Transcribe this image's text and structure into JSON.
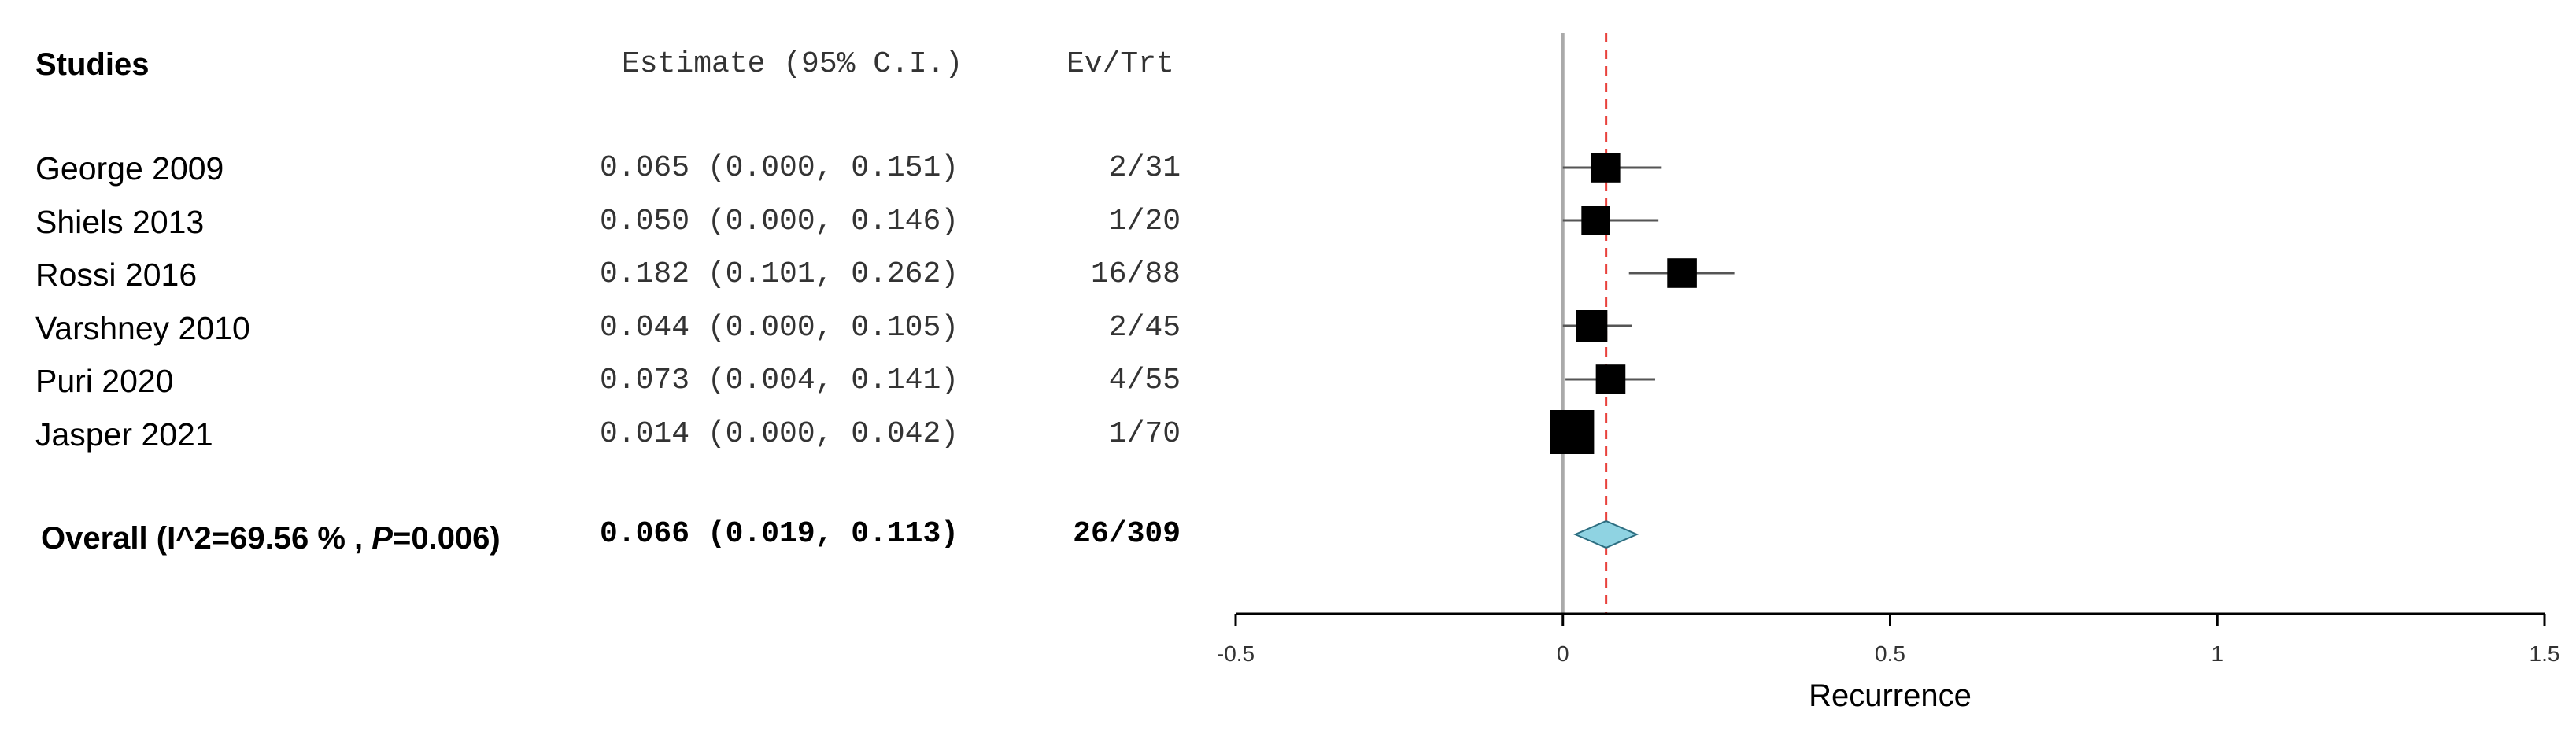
{
  "headers": {
    "studies": "Studies",
    "estimate": "Estimate (95% C.I.)",
    "ev_trt": "Ev/Trt"
  },
  "studies": [
    {
      "name": "George 2009",
      "estimate_text": "0.065 (0.000, 0.151)",
      "ev_trt": "2/31"
    },
    {
      "name": "Shiels 2013",
      "estimate_text": "0.050 (0.000, 0.146)",
      "ev_trt": "1/20"
    },
    {
      "name": "Rossi 2016",
      "estimate_text": "0.182 (0.101, 0.262)",
      "ev_trt": "16/88"
    },
    {
      "name": "Varshney 2010",
      "estimate_text": "0.044 (0.000, 0.105)",
      "ev_trt": "2/45"
    },
    {
      "name": "Puri 2020",
      "estimate_text": "0.073 (0.004, 0.141)",
      "ev_trt": "4/55"
    },
    {
      "name": "Jasper 2021",
      "estimate_text": "0.014 (0.000, 0.042)",
      "ev_trt": "1/70"
    }
  ],
  "overall": {
    "label_prefix": "Overall (I^2=69.56 % , ",
    "label_p": "P",
    "label_suffix": "=0.006)",
    "estimate_text": "0.066 (0.019, 0.113)",
    "ev_trt": "26/309"
  },
  "chart_data": {
    "type": "forest",
    "xlabel": "Recurrence",
    "xlim": [
      -0.5,
      1.5
    ],
    "ticks": [
      -0.5,
      0,
      0.5,
      1,
      1.5
    ],
    "tick_labels": [
      "-0.5",
      "0",
      "0.5",
      "1",
      "1.5"
    ],
    "null_line": 0,
    "pooled_line": 0.066,
    "studies": [
      {
        "estimate": 0.065,
        "lower": 0.0,
        "upper": 0.151,
        "weight": 0.17
      },
      {
        "estimate": 0.05,
        "lower": 0.0,
        "upper": 0.146,
        "weight": 0.15
      },
      {
        "estimate": 0.182,
        "lower": 0.101,
        "upper": 0.262,
        "weight": 0.17
      },
      {
        "estimate": 0.044,
        "lower": 0.0,
        "upper": 0.105,
        "weight": 0.2
      },
      {
        "estimate": 0.073,
        "lower": 0.004,
        "upper": 0.141,
        "weight": 0.17
      },
      {
        "estimate": 0.014,
        "lower": 0.0,
        "upper": 0.042,
        "weight": 0.4
      }
    ],
    "overall": {
      "estimate": 0.066,
      "lower": 0.019,
      "upper": 0.113
    },
    "colors": {
      "marker": "#000000",
      "ci_line": "#555555",
      "null_line": "#aaaaaa",
      "pooled_line": "#e8413c",
      "diamond_fill": "#8fd3e2",
      "diamond_stroke": "#2c6d80",
      "axis": "#000000"
    }
  }
}
